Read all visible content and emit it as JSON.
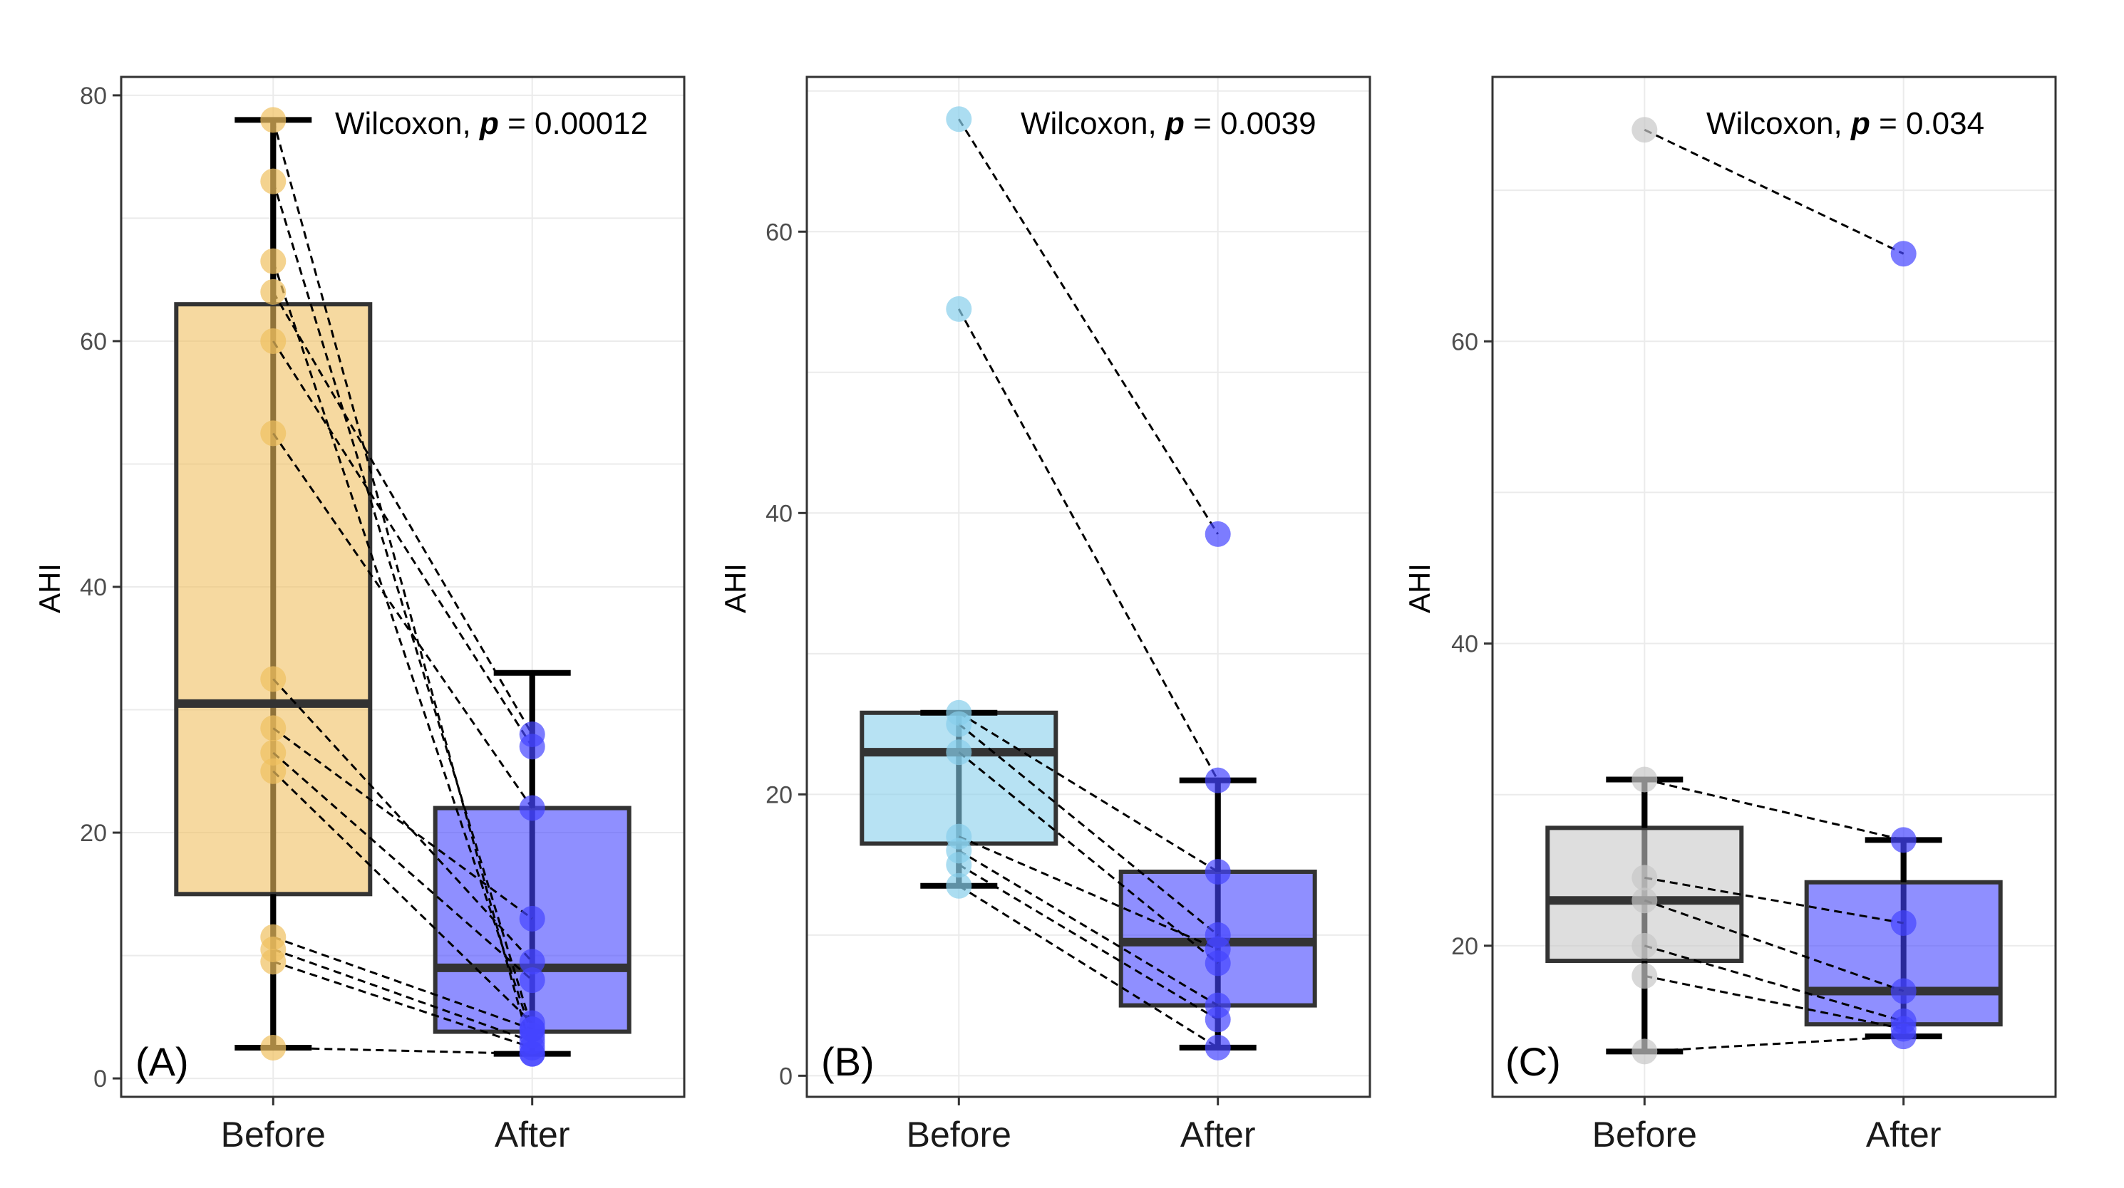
{
  "figure": {
    "y_axis_title": "AHI"
  },
  "chart_data": [
    {
      "type": "box",
      "panel_label": "(A)",
      "title": "",
      "xlabel": "",
      "ylabel": "AHI",
      "categories": [
        "Before",
        "After"
      ],
      "ylim": [
        -1.5,
        81.5
      ],
      "y_ticks": [
        0,
        20,
        40,
        60,
        80
      ],
      "grid": true,
      "annotation": {
        "prefix": "Wilcoxon, ",
        "p_symbol": "p",
        "suffix": " = 0.00012"
      },
      "colors": {
        "Before": "#f0c060",
        "After": "#4444ff"
      },
      "boxes": [
        {
          "category": "Before",
          "min": 2.5,
          "q1": 15,
          "median": 30.5,
          "q3": 63,
          "max": 78
        },
        {
          "category": "After",
          "min": 2,
          "q1": 3.8,
          "median": 9,
          "q3": 22,
          "max": 33
        }
      ],
      "pairs": [
        [
          78,
          2
        ],
        [
          73,
          4
        ],
        [
          66.5,
          3.5
        ],
        [
          64,
          28
        ],
        [
          60,
          27
        ],
        [
          52.5,
          22
        ],
        [
          32.5,
          9.5
        ],
        [
          28.5,
          13
        ],
        [
          26.5,
          8
        ],
        [
          25,
          4.5
        ],
        [
          11.5,
          4
        ],
        [
          10.5,
          3
        ],
        [
          9.5,
          2.5
        ],
        [
          2.5,
          2
        ]
      ]
    },
    {
      "type": "box",
      "panel_label": "(B)",
      "title": "",
      "xlabel": "",
      "ylabel": "AHI",
      "categories": [
        "Before",
        "After"
      ],
      "ylim": [
        -1.5,
        71
      ],
      "y_ticks": [
        0,
        20,
        40,
        60
      ],
      "grid": true,
      "annotation": {
        "prefix": "Wilcoxon, ",
        "p_symbol": "p",
        "suffix": " = 0.0039"
      },
      "colors": {
        "Before": "#87ceeb",
        "After": "#4444ff"
      },
      "boxes": [
        {
          "category": "Before",
          "min": 13.5,
          "q1": 16.5,
          "median": 23,
          "q3": 25.8,
          "max": 25.8
        },
        {
          "category": "After",
          "min": 2,
          "q1": 5,
          "median": 9.5,
          "q3": 14.5,
          "max": 21
        }
      ],
      "pairs": [
        [
          68,
          38.5
        ],
        [
          54.5,
          21
        ],
        [
          25.8,
          14.5
        ],
        [
          25,
          10
        ],
        [
          23,
          8
        ],
        [
          17,
          9
        ],
        [
          16,
          5
        ],
        [
          15,
          4
        ],
        [
          13.5,
          2
        ]
      ]
    },
    {
      "type": "box",
      "panel_label": "(C)",
      "title": "",
      "xlabel": "",
      "ylabel": "AHI",
      "categories": [
        "Before",
        "After"
      ],
      "ylim": [
        10,
        77.5
      ],
      "y_ticks": [
        20,
        40,
        60
      ],
      "grid": true,
      "annotation": {
        "prefix": "Wilcoxon, ",
        "p_symbol": "p",
        "suffix": " = 0.034"
      },
      "colors": {
        "Before": "#c8c8c8",
        "After": "#4444ff"
      },
      "boxes": [
        {
          "category": "Before",
          "min": 13,
          "q1": 19,
          "median": 23,
          "q3": 27.8,
          "max": 31
        },
        {
          "category": "After",
          "min": 14,
          "q1": 14.8,
          "median": 17,
          "q3": 24.2,
          "max": 27
        }
      ],
      "pairs": [
        [
          74,
          65.8
        ],
        [
          31,
          27
        ],
        [
          24.5,
          21.5
        ],
        [
          23,
          17
        ],
        [
          20,
          15
        ],
        [
          18,
          14.5
        ],
        [
          13,
          14
        ]
      ]
    }
  ]
}
